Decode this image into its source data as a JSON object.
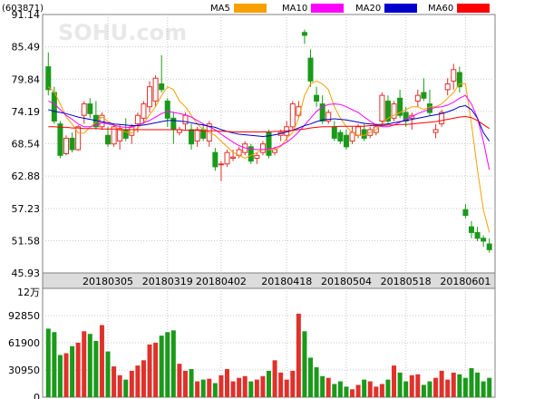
{
  "chart_data": {
    "type": "candlestick",
    "stock_code": "(603871)",
    "watermark": "SOHU.com",
    "legend": [
      {
        "name": "MA5",
        "color": "#f7a000"
      },
      {
        "name": "MA10",
        "color": "#ff00ff"
      },
      {
        "name": "MA20",
        "color": "#0000cc"
      },
      {
        "name": "MA60",
        "color": "#ff0000"
      }
    ],
    "price_axis": {
      "ticks": [
        "91.14",
        "85.49",
        "79.84",
        "74.19",
        "68.54",
        "62.88",
        "57.23",
        "51.58",
        "45.93"
      ],
      "min": 45.93,
      "max": 91.14
    },
    "date_labels": [
      "20180305",
      "20180319",
      "20180402",
      "20180418",
      "20180504",
      "20180518",
      "20180601"
    ],
    "date_label_index": [
      10,
      20,
      29,
      40,
      50,
      60,
      70
    ],
    "volume_axis": {
      "unit": "12万",
      "ticks": [
        "92850",
        "61900",
        "30950",
        "0"
      ],
      "max": 123800
    },
    "up_color": "#e0312b",
    "down_color": "#1a9a1a",
    "ohlc": [
      [
        82.0,
        84.5,
        77.0,
        78.0
      ],
      [
        77.5,
        78.5,
        72.0,
        72.5
      ],
      [
        72.0,
        72.5,
        66.0,
        66.5
      ],
      [
        66.8,
        70.0,
        66.5,
        69.5
      ],
      [
        69.5,
        70.5,
        67.0,
        67.5
      ],
      [
        67.5,
        71.8,
        67.3,
        71.5
      ],
      [
        73.5,
        76.0,
        72.0,
        75.5
      ],
      [
        75.5,
        76.5,
        73.0,
        73.8
      ],
      [
        73.5,
        76.0,
        71.0,
        71.5
      ],
      [
        71.5,
        74.0,
        71.0,
        73.5
      ],
      [
        70.0,
        71.5,
        68.0,
        68.5
      ],
      [
        68.5,
        72.0,
        68.0,
        71.5
      ],
      [
        69.0,
        72.0,
        67.5,
        71.2
      ],
      [
        71.0,
        73.0,
        69.0,
        69.5
      ],
      [
        70.0,
        72.0,
        68.5,
        71.5
      ],
      [
        72.0,
        74.0,
        70.5,
        73.5
      ],
      [
        73.0,
        76.0,
        72.0,
        75.5
      ],
      [
        75.0,
        79.5,
        74.0,
        78.5
      ],
      [
        76.0,
        80.5,
        75.0,
        80.0
      ],
      [
        79.0,
        84.0,
        77.5,
        78.0
      ],
      [
        76.0,
        76.5,
        71.5,
        73.0
      ],
      [
        73.0,
        74.0,
        68.5,
        71.0
      ],
      [
        70.5,
        71.5,
        70.0,
        71.0
      ],
      [
        72.0,
        74.0,
        71.0,
        73.5
      ],
      [
        71.0,
        72.0,
        67.5,
        68.5
      ],
      [
        69.0,
        71.5,
        68.0,
        71.0
      ],
      [
        71.0,
        72.0,
        69.0,
        69.5
      ],
      [
        69.0,
        72.5,
        68.0,
        72.0
      ],
      [
        67.0,
        67.8,
        63.8,
        64.5
      ],
      [
        65.0,
        65.5,
        62.0,
        65.0
      ],
      [
        65.0,
        67.5,
        64.5,
        67.0
      ],
      [
        66.0,
        67.5,
        65.5,
        66.2
      ],
      [
        66.5,
        68.0,
        66.0,
        67.5
      ],
      [
        67.0,
        69.0,
        66.5,
        68.5
      ],
      [
        68.0,
        68.5,
        65.0,
        65.5
      ],
      [
        66.0,
        67.0,
        65.0,
        66.5
      ],
      [
        67.0,
        69.0,
        66.5,
        68.5
      ],
      [
        70.5,
        71.0,
        66.0,
        66.5
      ],
      [
        67.0,
        68.0,
        66.5,
        67.5
      ],
      [
        70.0,
        71.0,
        69.0,
        70.5
      ],
      [
        70.0,
        72.5,
        69.0,
        71.5
      ],
      [
        71.5,
        76.0,
        71.0,
        75.5
      ],
      [
        73.5,
        76.0,
        73.0,
        75.0
      ],
      [
        88.0,
        88.5,
        86.0,
        87.5
      ],
      [
        83.5,
        85.0,
        78.5,
        79.5
      ],
      [
        77.0,
        78.5,
        75.0,
        76.0
      ],
      [
        75.5,
        77.0,
        72.0,
        72.5
      ],
      [
        72.5,
        74.5,
        72.0,
        74.0
      ],
      [
        71.5,
        72.5,
        69.0,
        69.5
      ],
      [
        70.5,
        71.0,
        68.5,
        69.0
      ],
      [
        70.0,
        71.0,
        67.5,
        68.0
      ],
      [
        69.0,
        71.5,
        68.5,
        70.5
      ],
      [
        70.0,
        72.0,
        69.5,
        71.5
      ],
      [
        71.0,
        72.0,
        69.0,
        69.5
      ],
      [
        70.0,
        71.5,
        69.5,
        71.0
      ],
      [
        70.5,
        72.0,
        70.0,
        71.5
      ],
      [
        72.5,
        77.5,
        72.0,
        77.0
      ],
      [
        76.0,
        77.0,
        72.0,
        72.5
      ],
      [
        73.0,
        76.0,
        72.5,
        75.5
      ],
      [
        76.5,
        78.0,
        73.0,
        73.5
      ],
      [
        74.0,
        75.0,
        71.5,
        72.5
      ],
      [
        73.0,
        74.0,
        71.0,
        73.5
      ],
      [
        76.0,
        78.0,
        75.0,
        77.0
      ],
      [
        77.5,
        80.0,
        76.0,
        76.5
      ],
      [
        75.5,
        78.0,
        73.5,
        74.0
      ],
      [
        70.5,
        72.0,
        69.5,
        71.0
      ],
      [
        72.0,
        74.5,
        71.5,
        74.0
      ],
      [
        78.0,
        80.0,
        77.0,
        79.0
      ],
      [
        79.5,
        82.5,
        78.0,
        81.5
      ],
      [
        81.0,
        82.0,
        77.5,
        78.5
      ]
    ],
    "ohlc_tail": [
      [
        57.0,
        58.0,
        55.5,
        56.0
      ],
      [
        54.0,
        55.0,
        52.0,
        53.0
      ],
      [
        53.0,
        54.0,
        51.5,
        52.0
      ],
      [
        52.0,
        52.5,
        50.5,
        51.5
      ],
      [
        51.0,
        52.0,
        49.5,
        50.0
      ]
    ],
    "ma5": [
      78.5,
      77.6,
      75.5,
      73.2,
      72.0,
      70.4,
      70.4,
      71.4,
      72.3,
      73.2,
      72.5,
      71.8,
      70.9,
      70.6,
      70.4,
      71.3,
      72.2,
      73.6,
      75.0,
      77.0,
      78.5,
      78.0,
      76.0,
      75.0,
      73.5,
      72.0,
      71.0,
      70.5,
      70.0,
      69.0,
      68.0,
      67.0,
      66.5,
      66.0,
      66.5,
      67.0,
      67.5,
      67.5,
      67.5,
      68.0,
      69.5,
      70.5,
      73.0,
      77.0,
      79.0,
      79.5,
      79.0,
      78.0,
      75.0,
      73.0,
      71.5,
      70.5,
      70.0,
      70.0,
      70.5,
      71.0,
      72.0,
      73.0,
      73.5,
      74.0,
      74.5,
      75.0,
      75.0,
      74.5,
      75.0,
      75.0,
      75.5,
      76.5,
      77.5,
      79.0,
      79.0,
      72.0,
      64.0,
      57.0,
      53.0
    ],
    "ma10": [
      76.0,
      75.5,
      74.5,
      73.5,
      72.8,
      72.0,
      71.5,
      71.5,
      71.8,
      72.2,
      72.0,
      71.8,
      71.5,
      71.4,
      71.4,
      71.8,
      72.2,
      72.6,
      73.2,
      73.8,
      74.2,
      74.0,
      73.8,
      73.6,
      73.2,
      72.6,
      72.0,
      71.5,
      71.0,
      70.2,
      69.5,
      68.8,
      68.2,
      67.8,
      67.6,
      67.5,
      67.5,
      67.6,
      67.8,
      68.2,
      68.8,
      69.6,
      70.6,
      71.8,
      73.0,
      74.2,
      75.0,
      75.4,
      75.5,
      75.4,
      75.0,
      74.5,
      74.0,
      73.2,
      72.5,
      71.8,
      71.5,
      71.5,
      71.8,
      72.3,
      72.8,
      73.3,
      73.8,
      74.2,
      74.6,
      74.9,
      75.0,
      75.3,
      75.8,
      76.5,
      77.0,
      75.5,
      73.0,
      69.0,
      64.0
    ],
    "ma20": [
      74.5,
      74.2,
      74.0,
      73.8,
      73.5,
      73.2,
      73.0,
      72.8,
      72.6,
      72.4,
      72.2,
      72.0,
      71.9,
      71.8,
      71.7,
      71.7,
      71.8,
      72.0,
      72.2,
      72.4,
      72.6,
      72.6,
      72.5,
      72.4,
      72.2,
      72.0,
      71.8,
      71.6,
      71.4,
      71.0,
      70.7,
      70.4,
      70.2,
      70.1,
      70.0,
      69.9,
      69.8,
      69.9,
      70.1,
      70.3,
      70.6,
      70.9,
      71.3,
      71.7,
      72.0,
      72.4,
      72.7,
      72.8,
      72.9,
      72.8,
      72.7,
      72.5,
      72.3,
      72.1,
      72.0,
      71.9,
      71.9,
      72.0,
      72.2,
      72.4,
      72.6,
      72.8,
      73.0,
      73.2,
      73.4,
      73.6,
      73.8,
      74.1,
      74.5,
      75.0,
      75.2,
      74.5,
      73.0,
      70.5,
      69.0
    ],
    "ma60": [
      71.5,
      71.5,
      71.4,
      71.4,
      71.3,
      71.3,
      71.2,
      71.2,
      71.2,
      71.1,
      71.1,
      71.1,
      71.0,
      71.0,
      71.0,
      71.0,
      71.0,
      71.0,
      71.0,
      71.0,
      71.0,
      71.0,
      71.0,
      70.9,
      70.9,
      70.9,
      70.8,
      70.8,
      70.8,
      70.7,
      70.7,
      70.6,
      70.6,
      70.6,
      70.6,
      70.6,
      70.6,
      70.6,
      70.7,
      70.7,
      70.8,
      70.9,
      71.0,
      71.1,
      71.3,
      71.4,
      71.5,
      71.5,
      71.5,
      71.6,
      71.6,
      71.6,
      71.6,
      71.6,
      71.7,
      71.7,
      71.7,
      71.8,
      71.8,
      71.9,
      71.9,
      72.0,
      72.1,
      72.2,
      72.3,
      72.4,
      72.6,
      72.8,
      73.0,
      73.2,
      73.3,
      73.1,
      72.6,
      71.9,
      71.2
    ],
    "volume": [
      78000,
      74000,
      48000,
      50000,
      58000,
      62000,
      75000,
      72000,
      64000,
      82000,
      52000,
      35000,
      25000,
      20000,
      30000,
      36000,
      42000,
      60000,
      62000,
      70000,
      74000,
      76000,
      38000,
      30000,
      32000,
      18000,
      20000,
      21000,
      16000,
      25000,
      32000,
      18000,
      22000,
      24000,
      18000,
      20000,
      24000,
      30000,
      42000,
      28000,
      20000,
      30000,
      95000,
      75000,
      45000,
      34000,
      24000,
      22000,
      15000,
      18000,
      12000,
      9000,
      14000,
      20000,
      18000,
      12000,
      15000,
      20000,
      36000,
      28000,
      18000,
      25000,
      26000,
      14000,
      18000,
      22000,
      30000,
      20000,
      28000,
      26000,
      22000,
      33000,
      28000,
      18000,
      22000,
      19000,
      15000,
      12000,
      10000,
      14000,
      12000,
      18000,
      10000,
      12000
    ]
  }
}
